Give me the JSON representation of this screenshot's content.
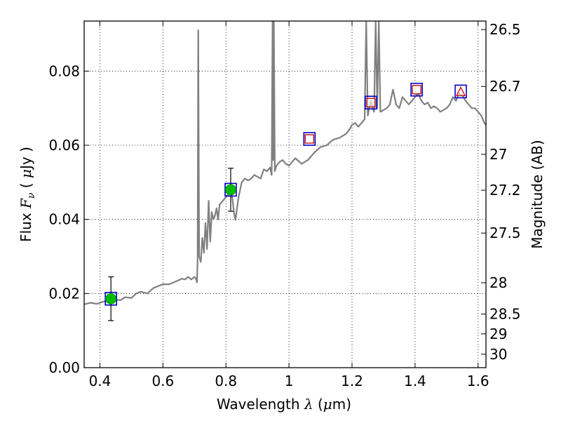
{
  "chart_data": {
    "type": "line",
    "xlabel": {
      "prefix": "Wavelength",
      "symbol": "λ",
      "unit_open": "(",
      "unit_mu": "μ",
      "unit_rest": "m)"
    },
    "ylabel": {
      "prefix": "Flux",
      "symbol": "F",
      "subscript": "ν",
      "unit_open": "(",
      "unit_mu": "μ",
      "unit_rest": "Jy",
      "unit_close": ")"
    },
    "y2label": "Magnitude (AB)",
    "xlim": [
      0.35,
      1.625
    ],
    "ylim": [
      0.0,
      0.0935
    ],
    "grid": true,
    "x_ticks": [
      {
        "v": 0.4,
        "label": "0.4"
      },
      {
        "v": 0.6,
        "label": "0.6"
      },
      {
        "v": 0.8,
        "label": "0.8"
      },
      {
        "v": 1.0,
        "label": "1"
      },
      {
        "v": 1.2,
        "label": "1.2"
      },
      {
        "v": 1.4,
        "label": "1.4"
      },
      {
        "v": 1.6,
        "label": "1.6"
      }
    ],
    "y_ticks": [
      {
        "v": 0.0,
        "label": "0.00"
      },
      {
        "v": 0.02,
        "label": "0.02"
      },
      {
        "v": 0.04,
        "label": "0.04"
      },
      {
        "v": 0.06,
        "label": "0.06"
      },
      {
        "v": 0.08,
        "label": "0.08"
      }
    ],
    "mag_ticks": [
      {
        "v": 26.5,
        "label": "26.5"
      },
      {
        "v": 26.7,
        "label": "26.7"
      },
      {
        "v": 27.0,
        "label": "27"
      },
      {
        "v": 27.2,
        "label": "27.2"
      },
      {
        "v": 27.5,
        "label": "27.5"
      },
      {
        "v": 28.0,
        "label": "28"
      },
      {
        "v": 28.5,
        "label": "28.5"
      },
      {
        "v": 29.0,
        "label": "29"
      },
      {
        "v": 30.0,
        "label": "30"
      }
    ],
    "series": [
      {
        "name": "model spectrum",
        "color": "#808080",
        "x": [
          0.35,
          0.37,
          0.39,
          0.41,
          0.425,
          0.435,
          0.45,
          0.465,
          0.48,
          0.5,
          0.515,
          0.53,
          0.55,
          0.57,
          0.585,
          0.6,
          0.62,
          0.64,
          0.66,
          0.67,
          0.68,
          0.69,
          0.7,
          0.705,
          0.708,
          0.71,
          0.712,
          0.715,
          0.72,
          0.725,
          0.73,
          0.735,
          0.74,
          0.745,
          0.75,
          0.755,
          0.76,
          0.765,
          0.77,
          0.775,
          0.78,
          0.79,
          0.8,
          0.81,
          0.815,
          0.82,
          0.825,
          0.83,
          0.84,
          0.85,
          0.86,
          0.87,
          0.88,
          0.89,
          0.9,
          0.91,
          0.92,
          0.93,
          0.94,
          0.945,
          0.948,
          0.95,
          0.952,
          0.955,
          0.96,
          0.97,
          0.98,
          0.99,
          1.0,
          1.02,
          1.04,
          1.06,
          1.08,
          1.1,
          1.12,
          1.14,
          1.16,
          1.18,
          1.19,
          1.2,
          1.21,
          1.22,
          1.23,
          1.24,
          1.245,
          1.25,
          1.255,
          1.26,
          1.265,
          1.27,
          1.275,
          1.28,
          1.285,
          1.29,
          1.3,
          1.31,
          1.32,
          1.33,
          1.34,
          1.35,
          1.36,
          1.37,
          1.38,
          1.39,
          1.4,
          1.41,
          1.42,
          1.43,
          1.44,
          1.45,
          1.46,
          1.47,
          1.48,
          1.49,
          1.5,
          1.51,
          1.52,
          1.53,
          1.54,
          1.55,
          1.56,
          1.57,
          1.58,
          1.59,
          1.6,
          1.61,
          1.62,
          1.625
        ],
        "y": [
          0.0171,
          0.0175,
          0.0172,
          0.0178,
          0.018,
          0.0186,
          0.0183,
          0.0182,
          0.019,
          0.0188,
          0.02,
          0.0205,
          0.02,
          0.0215,
          0.022,
          0.0225,
          0.0225,
          0.0232,
          0.024,
          0.0238,
          0.0245,
          0.0238,
          0.0245,
          0.024,
          0.023,
          0.0295,
          0.091,
          0.03,
          0.0285,
          0.035,
          0.031,
          0.039,
          0.032,
          0.045,
          0.034,
          0.042,
          0.04,
          0.041,
          0.043,
          0.04,
          0.044,
          0.045,
          0.046,
          0.047,
          0.049,
          0.046,
          0.042,
          0.0398,
          0.046,
          0.05,
          0.051,
          0.0505,
          0.051,
          0.052,
          0.0515,
          0.051,
          0.0535,
          0.053,
          0.054,
          0.052,
          0.0935,
          0.056,
          0.0935,
          0.053,
          0.0545,
          0.0555,
          0.056,
          0.055,
          0.0545,
          0.0565,
          0.055,
          0.056,
          0.058,
          0.0595,
          0.06,
          0.0615,
          0.062,
          0.063,
          0.064,
          0.0655,
          0.066,
          0.065,
          0.066,
          0.067,
          0.0935,
          0.068,
          0.07,
          0.072,
          0.07,
          0.069,
          0.0935,
          0.07,
          0.0935,
          0.069,
          0.0695,
          0.07,
          0.071,
          0.075,
          0.071,
          0.07,
          0.073,
          0.072,
          0.071,
          0.072,
          0.073,
          0.074,
          0.072,
          0.071,
          0.0715,
          0.07,
          0.0705,
          0.07,
          0.069,
          0.0695,
          0.07,
          0.071,
          0.073,
          0.072,
          0.074,
          0.0735,
          0.072,
          0.071,
          0.07,
          0.07,
          0.069,
          0.068,
          0.066,
          0.0655
        ]
      }
    ],
    "photometry": [
      {
        "name": "model-square",
        "x": [
          0.435,
          0.815,
          1.065,
          1.26,
          1.405,
          1.545
        ],
        "y": [
          0.0186,
          0.048,
          0.0617,
          0.0715,
          0.075,
          0.0745
        ],
        "edge": "#0000cc"
      },
      {
        "name": "observed-red-square",
        "x": [
          1.065,
          1.26,
          1.405
        ],
        "y": [
          0.0617,
          0.0715,
          0.075
        ],
        "edge": "#cc0000"
      },
      {
        "name": "observed-red-triangle",
        "x": [
          1.545
        ],
        "y": [
          0.0745
        ],
        "edge": "#cc0000"
      },
      {
        "name": "observed-green-point",
        "x": [
          0.435,
          0.815
        ],
        "y": [
          0.0186,
          0.048
        ],
        "yerr": [
          0.0059,
          0.0058
        ],
        "color": "#00bb00"
      }
    ]
  }
}
